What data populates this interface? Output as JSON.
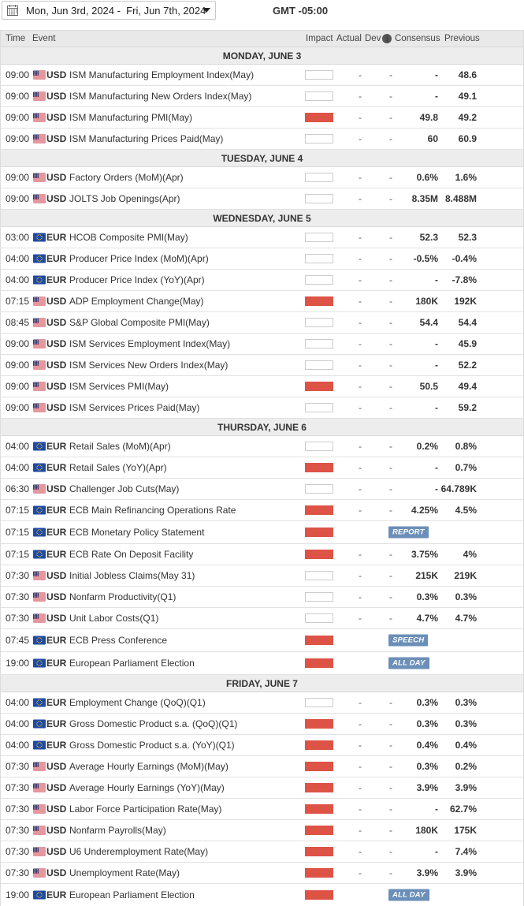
{
  "date_range": "Mon, Jun 3rd, 2024 -  Fri, Jun 7th, 2024",
  "timezone": "GMT -05:00",
  "headers": {
    "time": "Time",
    "event": "Event",
    "impact": "Impact",
    "actual": "Actual",
    "dev": "Dev",
    "consensus": "Consensus",
    "previous": "Previous"
  },
  "colors": {
    "high_impact": "#dd5346",
    "medium_impact": "#ef8b17",
    "badge": "#6b8fb8"
  },
  "days": [
    {
      "label": "MONDAY, JUNE 3",
      "events": [
        {
          "time": "09:00",
          "currency": "USD",
          "flag": "us-flag-icon",
          "event": "ISM Manufacturing Employment Index(May)",
          "impact": "medium",
          "actual": "-",
          "dev": "-",
          "consensus": "-",
          "previous": "48.6"
        },
        {
          "time": "09:00",
          "currency": "USD",
          "flag": "us-flag-icon",
          "event": "ISM Manufacturing New Orders Index(May)",
          "impact": "medium",
          "actual": "-",
          "dev": "-",
          "consensus": "-",
          "previous": "49.1"
        },
        {
          "time": "09:00",
          "currency": "USD",
          "flag": "us-flag-icon",
          "event": "ISM Manufacturing PMI(May)",
          "impact": "high",
          "actual": "-",
          "dev": "-",
          "consensus": "49.8",
          "previous": "49.2"
        },
        {
          "time": "09:00",
          "currency": "USD",
          "flag": "us-flag-icon",
          "event": "ISM Manufacturing Prices Paid(May)",
          "impact": "medium",
          "actual": "-",
          "dev": "-",
          "consensus": "60",
          "previous": "60.9"
        }
      ]
    },
    {
      "label": "TUESDAY, JUNE 4",
      "events": [
        {
          "time": "09:00",
          "currency": "USD",
          "flag": "us-flag-icon",
          "event": "Factory Orders (MoM)(Apr)",
          "impact": "medium",
          "actual": "-",
          "dev": "-",
          "consensus": "0.6%",
          "previous": "1.6%"
        },
        {
          "time": "09:00",
          "currency": "USD",
          "flag": "us-flag-icon",
          "event": "JOLTS Job Openings(Apr)",
          "impact": "medium",
          "actual": "-",
          "dev": "-",
          "consensus": "8.35M",
          "previous": "8.488M"
        }
      ]
    },
    {
      "label": "WEDNESDAY, JUNE 5",
      "events": [
        {
          "time": "03:00",
          "currency": "EUR",
          "flag": "eu-flag-icon",
          "event": "HCOB Composite PMI(May)",
          "impact": "medium",
          "actual": "-",
          "dev": "-",
          "consensus": "52.3",
          "previous": "52.3"
        },
        {
          "time": "04:00",
          "currency": "EUR",
          "flag": "eu-flag-icon",
          "event": "Producer Price Index (MoM)(Apr)",
          "impact": "medium",
          "actual": "-",
          "dev": "-",
          "consensus": "-0.5%",
          "previous": "-0.4%"
        },
        {
          "time": "04:00",
          "currency": "EUR",
          "flag": "eu-flag-icon",
          "event": "Producer Price Index (YoY)(Apr)",
          "impact": "medium",
          "actual": "-",
          "dev": "-",
          "consensus": "-",
          "previous": "-7.8%"
        },
        {
          "time": "07:15",
          "currency": "USD",
          "flag": "us-flag-icon",
          "event": "ADP Employment Change(May)",
          "impact": "high",
          "actual": "-",
          "dev": "-",
          "consensus": "180K",
          "previous": "192K"
        },
        {
          "time": "08:45",
          "currency": "USD",
          "flag": "us-flag-icon",
          "event": "S&P Global Composite PMI(May)",
          "impact": "medium",
          "actual": "-",
          "dev": "-",
          "consensus": "54.4",
          "previous": "54.4"
        },
        {
          "time": "09:00",
          "currency": "USD",
          "flag": "us-flag-icon",
          "event": "ISM Services Employment Index(May)",
          "impact": "medium",
          "actual": "-",
          "dev": "-",
          "consensus": "-",
          "previous": "45.9"
        },
        {
          "time": "09:00",
          "currency": "USD",
          "flag": "us-flag-icon",
          "event": "ISM Services New Orders Index(May)",
          "impact": "medium",
          "actual": "-",
          "dev": "-",
          "consensus": "-",
          "previous": "52.2"
        },
        {
          "time": "09:00",
          "currency": "USD",
          "flag": "us-flag-icon",
          "event": "ISM Services PMI(May)",
          "impact": "high",
          "actual": "-",
          "dev": "-",
          "consensus": "50.5",
          "previous": "49.4"
        },
        {
          "time": "09:00",
          "currency": "USD",
          "flag": "us-flag-icon",
          "event": "ISM Services Prices Paid(May)",
          "impact": "medium",
          "actual": "-",
          "dev": "-",
          "consensus": "-",
          "previous": "59.2"
        }
      ]
    },
    {
      "label": "THURSDAY, JUNE 6",
      "events": [
        {
          "time": "04:00",
          "currency": "EUR",
          "flag": "eu-flag-icon",
          "event": "Retail Sales (MoM)(Apr)",
          "impact": "medium",
          "actual": "-",
          "dev": "-",
          "consensus": "0.2%",
          "previous": "0.8%"
        },
        {
          "time": "04:00",
          "currency": "EUR",
          "flag": "eu-flag-icon",
          "event": "Retail Sales (YoY)(Apr)",
          "impact": "high",
          "actual": "-",
          "dev": "-",
          "consensus": "-",
          "previous": "0.7%"
        },
        {
          "time": "06:30",
          "currency": "USD",
          "flag": "us-flag-icon",
          "event": "Challenger Job Cuts(May)",
          "impact": "medium",
          "actual": "-",
          "dev": "-",
          "consensus": "-",
          "previous": "64.789K"
        },
        {
          "time": "07:15",
          "currency": "EUR",
          "flag": "eu-flag-icon",
          "event": "ECB Main Refinancing Operations Rate",
          "impact": "high",
          "actual": "-",
          "dev": "-",
          "consensus": "4.25%",
          "previous": "4.5%"
        },
        {
          "time": "07:15",
          "currency": "EUR",
          "flag": "eu-flag-icon",
          "event": "ECB Monetary Policy Statement",
          "impact": "high",
          "badge": "REPORT"
        },
        {
          "time": "07:15",
          "currency": "EUR",
          "flag": "eu-flag-icon",
          "event": "ECB Rate On Deposit Facility",
          "impact": "high",
          "actual": "-",
          "dev": "-",
          "consensus": "3.75%",
          "previous": "4%"
        },
        {
          "time": "07:30",
          "currency": "USD",
          "flag": "us-flag-icon",
          "event": "Initial Jobless Claims(May 31)",
          "impact": "medium",
          "actual": "-",
          "dev": "-",
          "consensus": "215K",
          "previous": "219K"
        },
        {
          "time": "07:30",
          "currency": "USD",
          "flag": "us-flag-icon",
          "event": "Nonfarm Productivity(Q1)",
          "impact": "medium",
          "actual": "-",
          "dev": "-",
          "consensus": "0.3%",
          "previous": "0.3%"
        },
        {
          "time": "07:30",
          "currency": "USD",
          "flag": "us-flag-icon",
          "event": "Unit Labor Costs(Q1)",
          "impact": "medium",
          "actual": "-",
          "dev": "-",
          "consensus": "4.7%",
          "previous": "4.7%"
        },
        {
          "time": "07:45",
          "currency": "EUR",
          "flag": "eu-flag-icon",
          "event": "ECB Press Conference",
          "impact": "high",
          "badge": "SPEECH"
        },
        {
          "time": "19:00",
          "currency": "EUR",
          "flag": "eu-flag-icon",
          "event": "European Parliament Election",
          "impact": "high",
          "badge": "ALL DAY"
        }
      ]
    },
    {
      "label": "FRIDAY, JUNE 7",
      "events": [
        {
          "time": "04:00",
          "currency": "EUR",
          "flag": "eu-flag-icon",
          "event": "Employment Change (QoQ)(Q1)",
          "impact": "medium",
          "actual": "-",
          "dev": "-",
          "consensus": "0.3%",
          "previous": "0.3%"
        },
        {
          "time": "04:00",
          "currency": "EUR",
          "flag": "eu-flag-icon",
          "event": "Gross Domestic Product s.a. (QoQ)(Q1)",
          "impact": "high",
          "actual": "-",
          "dev": "-",
          "consensus": "0.3%",
          "previous": "0.3%"
        },
        {
          "time": "04:00",
          "currency": "EUR",
          "flag": "eu-flag-icon",
          "event": "Gross Domestic Product s.a. (YoY)(Q1)",
          "impact": "high",
          "actual": "-",
          "dev": "-",
          "consensus": "0.4%",
          "previous": "0.4%"
        },
        {
          "time": "07:30",
          "currency": "USD",
          "flag": "us-flag-icon",
          "event": "Average Hourly Earnings (MoM)(May)",
          "impact": "high",
          "actual": "-",
          "dev": "-",
          "consensus": "0.3%",
          "previous": "0.2%"
        },
        {
          "time": "07:30",
          "currency": "USD",
          "flag": "us-flag-icon",
          "event": "Average Hourly Earnings (YoY)(May)",
          "impact": "high",
          "actual": "-",
          "dev": "-",
          "consensus": "3.9%",
          "previous": "3.9%"
        },
        {
          "time": "07:30",
          "currency": "USD",
          "flag": "us-flag-icon",
          "event": "Labor Force Participation Rate(May)",
          "impact": "high",
          "actual": "-",
          "dev": "-",
          "consensus": "-",
          "previous": "62.7%"
        },
        {
          "time": "07:30",
          "currency": "USD",
          "flag": "us-flag-icon",
          "event": "Nonfarm Payrolls(May)",
          "impact": "high",
          "actual": "-",
          "dev": "-",
          "consensus": "180K",
          "previous": "175K"
        },
        {
          "time": "07:30",
          "currency": "USD",
          "flag": "us-flag-icon",
          "event": "U6 Underemployment Rate(May)",
          "impact": "high",
          "actual": "-",
          "dev": "-",
          "consensus": "-",
          "previous": "7.4%"
        },
        {
          "time": "07:30",
          "currency": "USD",
          "flag": "us-flag-icon",
          "event": "Unemployment Rate(May)",
          "impact": "high",
          "actual": "-",
          "dev": "-",
          "consensus": "3.9%",
          "previous": "3.9%"
        },
        {
          "time": "19:00",
          "currency": "EUR",
          "flag": "eu-flag-icon",
          "event": "European Parliament Election",
          "impact": "high",
          "badge": "ALL DAY"
        }
      ]
    }
  ]
}
